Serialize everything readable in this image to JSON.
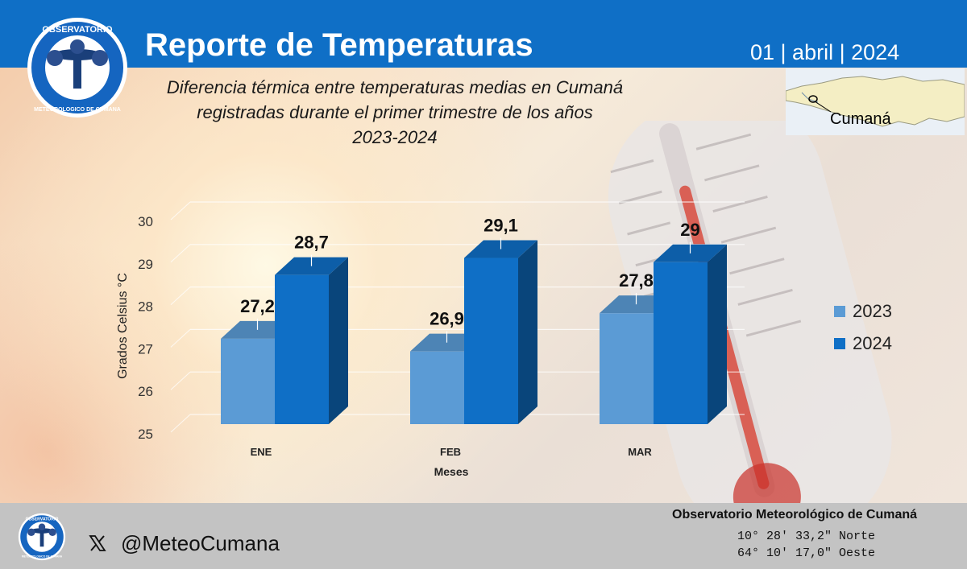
{
  "header": {
    "title": "Reporte de Temperaturas",
    "date": "01 | abril | 2024",
    "logo_text_top": "OBSERVATORIO",
    "logo_text_bottom": "METEOROLOGICO DE CUMANA"
  },
  "subtitle": {
    "line1": "Diferencia térmica entre temperaturas medias en Cumaná",
    "line2": "registradas durante el primer trimestre de los años",
    "line3": "2023-2024"
  },
  "map": {
    "label": "Cumaná"
  },
  "chart_data": {
    "type": "bar",
    "categories": [
      "ENE",
      "FEB",
      "MAR"
    ],
    "series": [
      {
        "name": "2023",
        "values": [
          27.2,
          26.9,
          27.8
        ],
        "labels": [
          "27,2",
          "26,9",
          "27,8"
        ],
        "color": "#5b9bd5"
      },
      {
        "name": "2024",
        "values": [
          28.7,
          29.1,
          29.0
        ],
        "labels": [
          "28,7",
          "29,1",
          "29"
        ],
        "color": "#0f6fc6"
      }
    ],
    "xlabel": "Meses",
    "ylabel": "Grados Celsius °C",
    "ylim": [
      25,
      30
    ],
    "yticks": [
      "25",
      "26",
      "27",
      "28",
      "29",
      "30"
    ],
    "grid": true,
    "legend_position": "right",
    "style": "3d-column"
  },
  "footer": {
    "social_icon": "x-logo-icon",
    "handle": "@MeteoCumana",
    "observatory": "Observatorio Meteorológico de Cumaná",
    "latitude": "10° 28' 33,2\" Norte",
    "longitude": "64° 10' 17,0\" Oeste"
  },
  "colors": {
    "header_blue": "#0f6fc6",
    "footer_gray": "#c3c3c3",
    "bar_2023": "#5b9bd5",
    "bar_2024": "#0f6fc6"
  }
}
